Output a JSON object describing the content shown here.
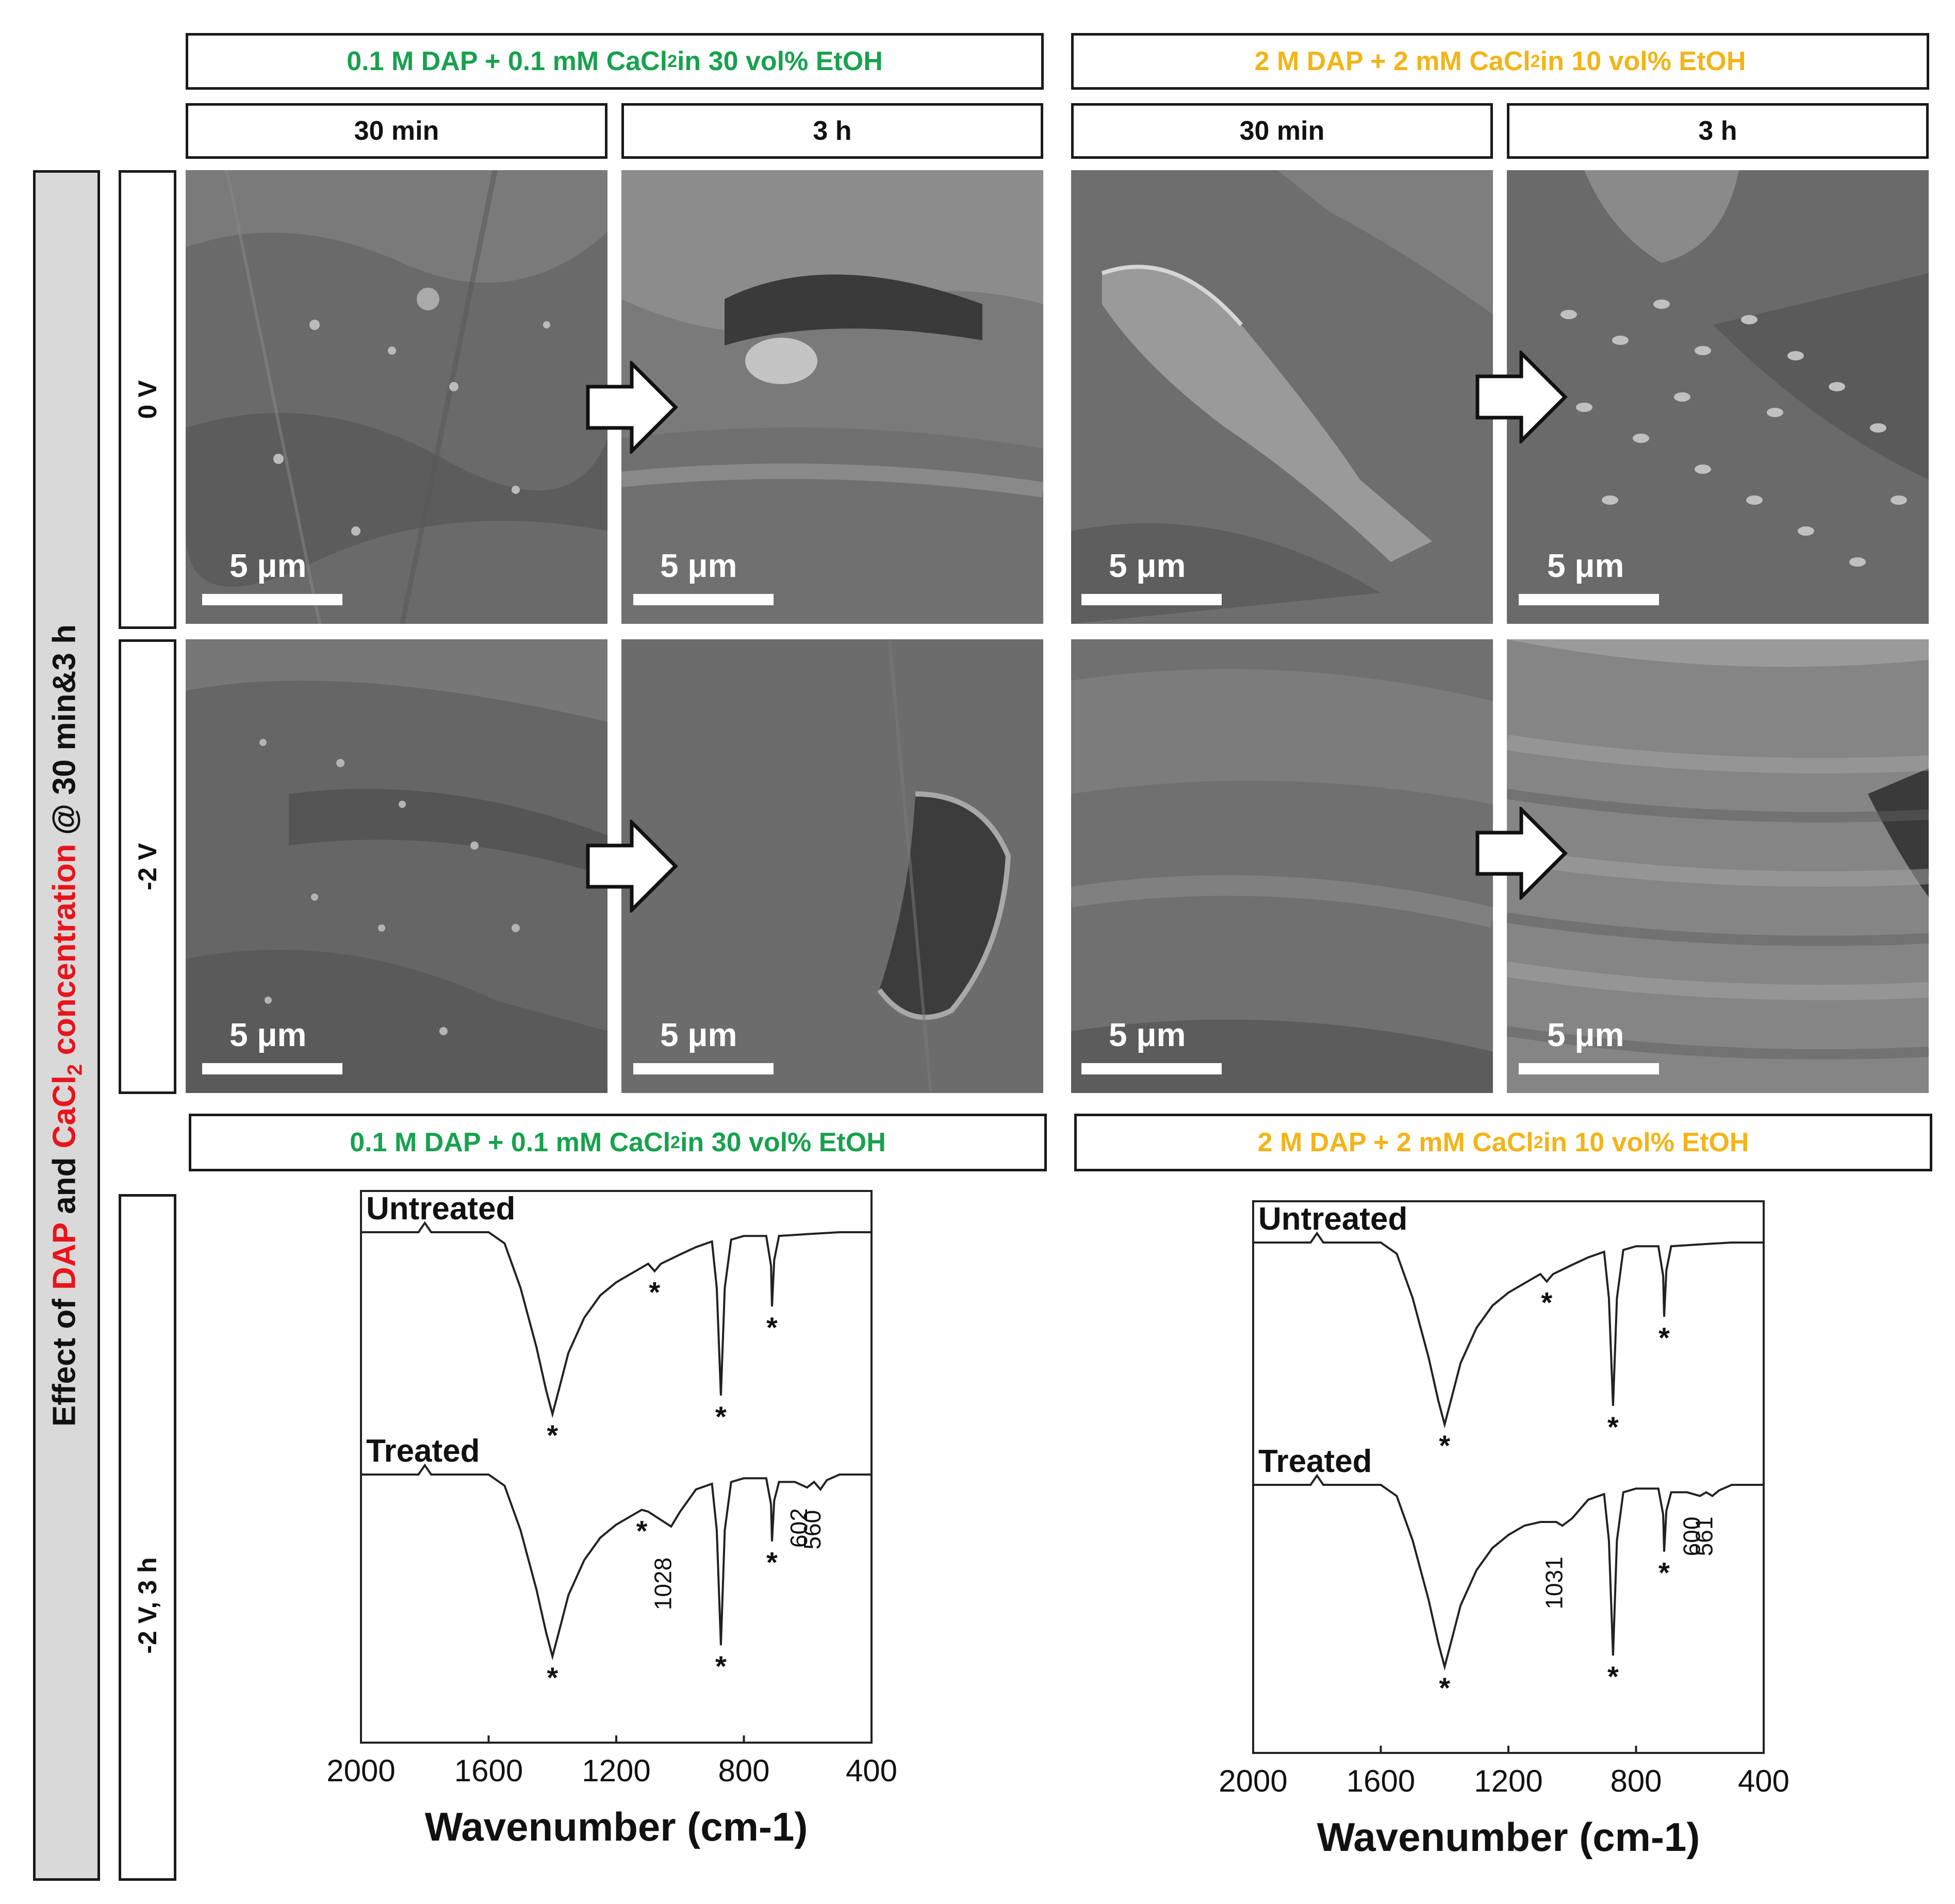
{
  "headers": {
    "top_left": {
      "pre": "0.1 M DAP + 0.1 mM CaCl",
      "sub": "2",
      "post": " in 30 vol% EtOH",
      "color": "#18a14e"
    },
    "top_right": {
      "pre": "2 M DAP + 2 mM CaCl",
      "sub": "2",
      "post": " in 10 vol% EtOH",
      "color": "#f2b417"
    },
    "time_labels": [
      "30 min",
      "3 h",
      "30 min",
      "3 h"
    ],
    "bottom_left": {
      "pre": "0.1 M DAP + 0.1 mM CaCl",
      "sub": "2",
      "post": " in 30 vol% EtOH"
    },
    "bottom_right": {
      "pre": "2 M DAP + 2 mM CaCl",
      "sub": "2",
      "post": " in 10 vol% EtOH"
    }
  },
  "side_title": {
    "p1": "Effect of ",
    "p2": "DAP",
    "p3": " and ",
    "p4": "CaCl",
    "p4_sub": "2",
    "p5": " concentration",
    "p6": " @ 30 min&3 h"
  },
  "row_labels": [
    "0 V",
    "-2 V",
    "-2 V, 3 h"
  ],
  "scale_bar": "5 μm",
  "sem_images": [
    {
      "row": "0 V",
      "time": "30 min",
      "solution": "0.1 M DAP"
    },
    {
      "row": "0 V",
      "time": "3 h",
      "solution": "0.1 M DAP"
    },
    {
      "row": "0 V",
      "time": "30 min",
      "solution": "2 M DAP"
    },
    {
      "row": "0 V",
      "time": "3 h",
      "solution": "2 M DAP"
    },
    {
      "row": "-2 V",
      "time": "30 min",
      "solution": "0.1 M DAP"
    },
    {
      "row": "-2 V",
      "time": "3 h",
      "solution": "0.1 M DAP"
    },
    {
      "row": "-2 V",
      "time": "30 min",
      "solution": "2 M DAP"
    },
    {
      "row": "-2 V",
      "time": "3 h",
      "solution": "2 M DAP"
    }
  ],
  "chart_data": [
    {
      "type": "line",
      "xlabel": "Wavenumber (cm-1)",
      "xlim": [
        2000,
        400
      ],
      "xticks": [
        "2000",
        "1600",
        "1200",
        "800",
        "400"
      ],
      "series": [
        {
          "name": "Untreated",
          "x": [
            2000,
            1820,
            1800,
            1780,
            1600,
            1550,
            1500,
            1450,
            1420,
            1400,
            1380,
            1350,
            1300,
            1250,
            1200,
            1150,
            1100,
            1080,
            1060,
            1000,
            950,
            900,
            885,
            872,
            860,
            840,
            800,
            780,
            730,
            715,
            712,
            705,
            690,
            600,
            500,
            400
          ],
          "y": [
            0,
            0,
            0.05,
            0,
            0,
            -0.06,
            -0.3,
            -0.62,
            -0.85,
            -0.98,
            -0.85,
            -0.65,
            -0.46,
            -0.34,
            -0.27,
            -0.22,
            -0.17,
            -0.21,
            -0.17,
            -0.12,
            -0.08,
            -0.05,
            -0.3,
            -0.88,
            -0.3,
            -0.04,
            -0.02,
            -0.02,
            -0.02,
            -0.18,
            -0.4,
            -0.15,
            -0.02,
            -0.01,
            0,
            0
          ]
        },
        {
          "name": "Treated",
          "x": [
            2000,
            1820,
            1800,
            1780,
            1600,
            1550,
            1500,
            1450,
            1420,
            1400,
            1380,
            1350,
            1300,
            1250,
            1200,
            1150,
            1120,
            1100,
            1028,
            1000,
            950,
            900,
            885,
            872,
            860,
            840,
            800,
            780,
            730,
            715,
            712,
            705,
            690,
            640,
            602,
            580,
            560,
            540,
            500,
            400
          ],
          "y": [
            0,
            0,
            0.05,
            0,
            0,
            -0.06,
            -0.3,
            -0.62,
            -0.85,
            -0.98,
            -0.85,
            -0.65,
            -0.46,
            -0.34,
            -0.27,
            -0.22,
            -0.19,
            -0.2,
            -0.28,
            -0.2,
            -0.08,
            -0.05,
            -0.3,
            -0.92,
            -0.3,
            -0.04,
            -0.02,
            -0.02,
            -0.02,
            -0.16,
            -0.36,
            -0.14,
            -0.04,
            -0.04,
            -0.07,
            -0.04,
            -0.08,
            -0.03,
            0,
            0
          ]
        }
      ],
      "peak_markers": [
        "*",
        "*",
        "*",
        "*"
      ],
      "annotations": [
        "1028",
        "602",
        "560"
      ],
      "labels": [
        "Untreated",
        "Treated"
      ]
    },
    {
      "type": "line",
      "xlabel": "Wavenumber (cm-1)",
      "xlim": [
        2000,
        400
      ],
      "xticks": [
        "2000",
        "1600",
        "1200",
        "800",
        "400"
      ],
      "series": [
        {
          "name": "Untreated",
          "x": [
            2000,
            1820,
            1800,
            1780,
            1600,
            1550,
            1500,
            1450,
            1420,
            1400,
            1380,
            1350,
            1300,
            1250,
            1200,
            1150,
            1100,
            1080,
            1060,
            1000,
            950,
            900,
            885,
            872,
            860,
            840,
            800,
            780,
            730,
            715,
            712,
            705,
            690,
            600,
            500,
            400
          ],
          "y": [
            0,
            0,
            0.05,
            0,
            0,
            -0.06,
            -0.3,
            -0.62,
            -0.85,
            -0.98,
            -0.85,
            -0.65,
            -0.46,
            -0.34,
            -0.27,
            -0.22,
            -0.17,
            -0.21,
            -0.17,
            -0.12,
            -0.08,
            -0.05,
            -0.3,
            -0.88,
            -0.3,
            -0.04,
            -0.02,
            -0.02,
            -0.02,
            -0.18,
            -0.4,
            -0.15,
            -0.02,
            -0.01,
            0,
            0
          ]
        },
        {
          "name": "Treated",
          "x": [
            2000,
            1820,
            1800,
            1780,
            1600,
            1550,
            1500,
            1450,
            1420,
            1400,
            1380,
            1350,
            1300,
            1250,
            1200,
            1150,
            1100,
            1050,
            1031,
            1000,
            950,
            900,
            885,
            872,
            860,
            840,
            800,
            780,
            730,
            715,
            712,
            705,
            690,
            640,
            600,
            580,
            561,
            540,
            500,
            400
          ],
          "y": [
            0,
            0,
            0.05,
            0,
            0,
            -0.06,
            -0.3,
            -0.62,
            -0.85,
            -0.98,
            -0.85,
            -0.65,
            -0.46,
            -0.34,
            -0.27,
            -0.22,
            -0.2,
            -0.2,
            -0.22,
            -0.18,
            -0.08,
            -0.05,
            -0.3,
            -0.92,
            -0.3,
            -0.04,
            -0.02,
            -0.02,
            -0.02,
            -0.16,
            -0.36,
            -0.14,
            -0.04,
            -0.04,
            -0.06,
            -0.04,
            -0.06,
            -0.03,
            0,
            0
          ]
        }
      ],
      "peak_markers": [
        "*",
        "*",
        "*",
        "*"
      ],
      "annotations": [
        "1031",
        "600",
        "561"
      ],
      "labels": [
        "Untreated",
        "Treated"
      ]
    }
  ]
}
